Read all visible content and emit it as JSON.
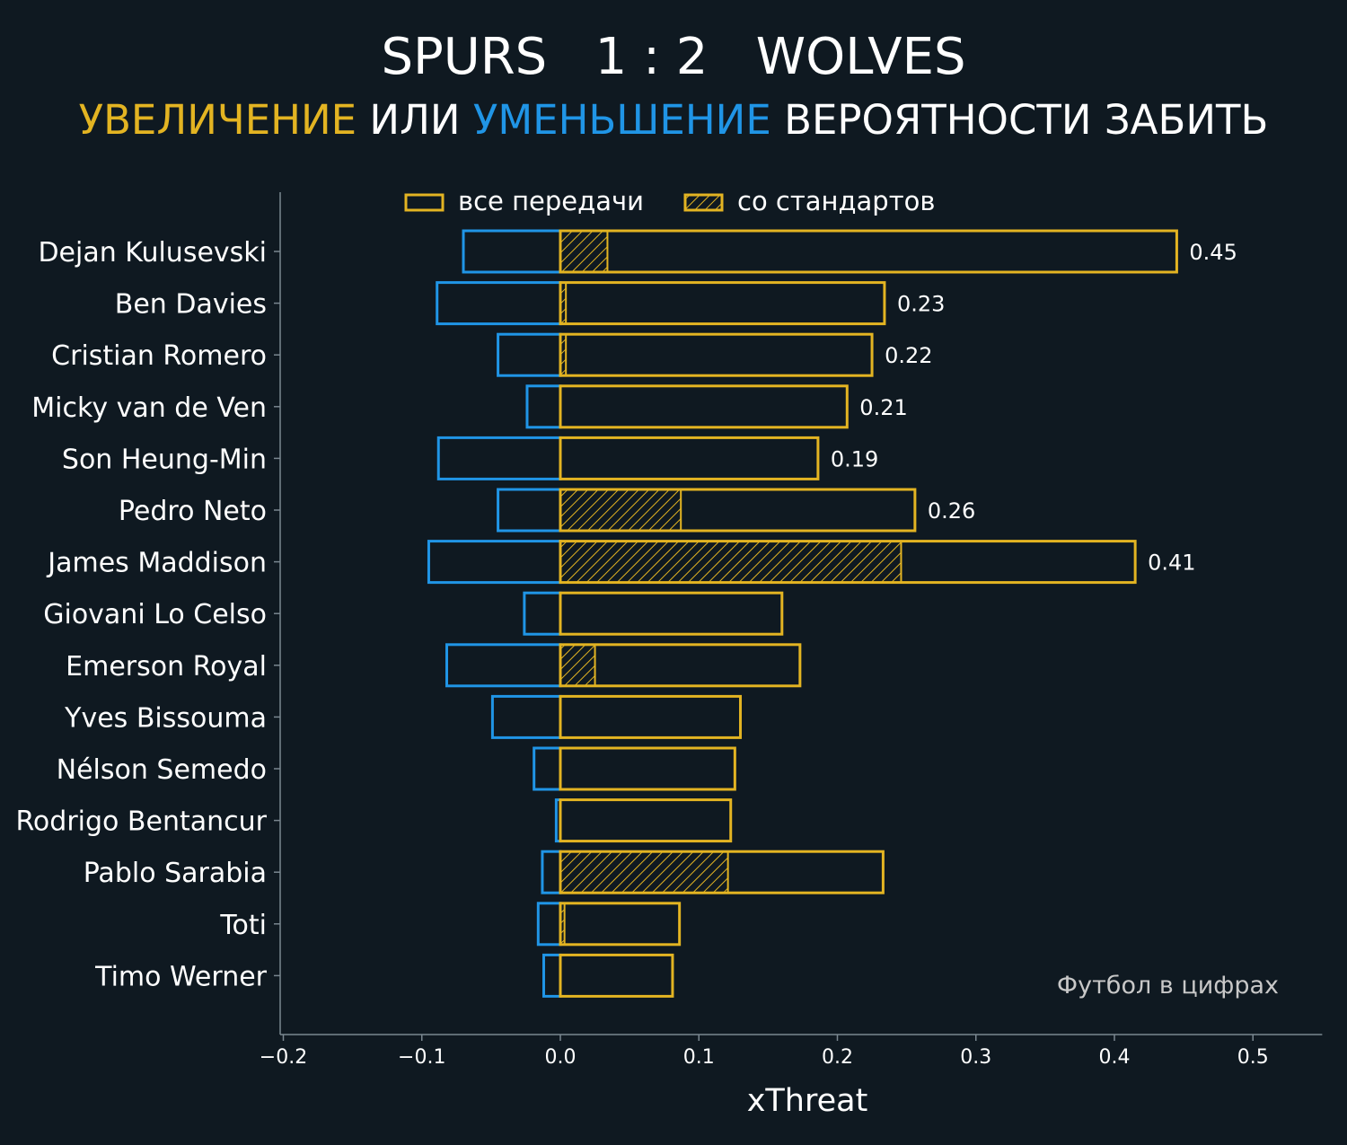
{
  "header": {
    "home_team": "SPURS",
    "score": "1 : 2",
    "away_team": "WOLVES",
    "subtitle_increase": "УВЕЛИЧЕНИЕ",
    "subtitle_or": "ИЛИ",
    "subtitle_decrease": "УМЕНЬШЕНИЕ",
    "subtitle_rest": "ВЕРОЯТНОСТИ ЗАБИТЬ"
  },
  "watermark": "Футбол в цифрах",
  "colors": {
    "background": "#0f1921",
    "increase": "#e3b422",
    "decrease": "#2095e6",
    "axis": "#7a8790",
    "text": "#ffffff",
    "watermark": "#c8c8c8"
  },
  "chart_data": {
    "type": "bar",
    "orientation": "horizontal",
    "xlabel": "xThreat",
    "xlim": [
      -0.2,
      0.55
    ],
    "xticks": [
      -0.2,
      -0.1,
      0.0,
      0.1,
      0.2,
      0.3,
      0.4,
      0.5
    ],
    "xtick_labels": [
      "−0.2",
      "−0.1",
      "0.0",
      "0.1",
      "0.2",
      "0.3",
      "0.4",
      "0.5"
    ],
    "grid": false,
    "legend_position": "top",
    "legend": [
      {
        "label": "все передачи",
        "style": "outline"
      },
      {
        "label": "со стандартов",
        "style": "hatched"
      }
    ],
    "categories": [
      "Dejan Kulusevski",
      "Ben Davies",
      "Cristian Romero",
      "Micky van de Ven",
      "Son Heung-Min",
      "Pedro Neto",
      "James Maddison",
      "Giovani Lo Celso",
      "Emerson Royal",
      "Yves Bissouma",
      "Nélson Semedo",
      "Rodrigo Bentancur",
      "Pablo Sarabia",
      "Toti",
      "Timo Werner"
    ],
    "series": [
      {
        "name": "все передачи",
        "values": [
          0.445,
          0.234,
          0.225,
          0.207,
          0.186,
          0.256,
          0.415,
          0.16,
          0.173,
          0.13,
          0.126,
          0.123,
          0.233,
          0.086,
          0.081
        ]
      },
      {
        "name": "со стандартов",
        "values": [
          0.034,
          0.004,
          0.004,
          0,
          0,
          0.087,
          0.246,
          0,
          0.025,
          0,
          0,
          0,
          0.121,
          0.003,
          0
        ]
      },
      {
        "values": [
          -0.07,
          -0.089,
          -0.045,
          -0.024,
          -0.088,
          -0.045,
          -0.095,
          -0.026,
          -0.082,
          -0.049,
          -0.019,
          -0.003,
          -0.013,
          -0.016,
          -0.012
        ]
      }
    ],
    "value_labels": [
      "0.45",
      "0.23",
      "0.22",
      "0.21",
      "0.19",
      "0.26",
      "0.41",
      "",
      "",
      "",
      "",
      "",
      "",
      "",
      ""
    ]
  }
}
